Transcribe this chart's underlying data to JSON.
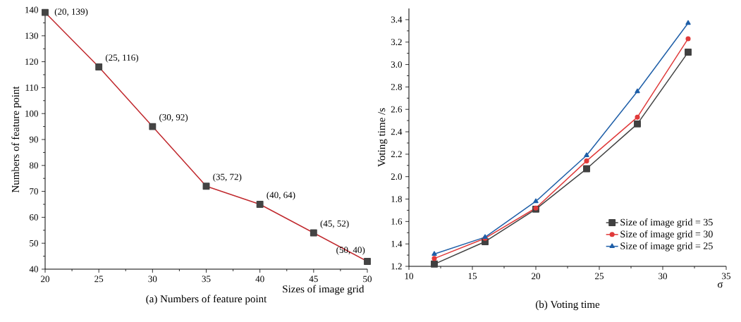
{
  "chart_data": [
    {
      "type": "line",
      "title": "(a) Numbers of feature point",
      "xlabel": "Sizes of image grid",
      "ylabel": "Numbers of feature point",
      "x": [
        20,
        25,
        30,
        35,
        40,
        45,
        50
      ],
      "series": [
        {
          "color": "#c0282d",
          "values": [
            139,
            118,
            95,
            72,
            65,
            54,
            43
          ]
        }
      ],
      "xlim": [
        20,
        50
      ],
      "xticks": [
        20,
        25,
        30,
        35,
        40,
        45,
        50
      ],
      "ylim": [
        40,
        140
      ],
      "yticks": [
        40,
        50,
        60,
        70,
        80,
        90,
        100,
        110,
        120,
        130,
        140
      ],
      "marker": "square",
      "grid": false,
      "legend": false,
      "annotations": [
        {
          "text": "(20, 139)",
          "x": 20,
          "y": 139
        },
        {
          "text": "(25, 116)",
          "x": 25,
          "y": 118
        },
        {
          "text": "(30, 92)",
          "x": 30,
          "y": 95
        },
        {
          "text": "(35, 72)",
          "x": 35,
          "y": 72
        },
        {
          "text": "(40, 64)",
          "x": 40,
          "y": 65
        },
        {
          "text": "(45, 52)",
          "x": 45,
          "y": 54
        },
        {
          "text": "(50, 40)",
          "x": 50,
          "y": 43
        }
      ]
    },
    {
      "type": "line",
      "title": "(b) Voting time",
      "xlabel": "σ",
      "ylabel": "Voting time /s",
      "x": [
        12,
        16,
        20,
        24,
        28,
        32
      ],
      "series": [
        {
          "name": "Size of image grid = 35",
          "color": "#404040",
          "marker": "square",
          "values": [
            1.22,
            1.42,
            1.71,
            2.07,
            2.47,
            3.11
          ]
        },
        {
          "name": "Size of image grid = 30",
          "color": "#e03a3a",
          "marker": "circle",
          "values": [
            1.27,
            1.45,
            1.72,
            2.14,
            2.53,
            3.23
          ]
        },
        {
          "name": "Size of image grid = 25",
          "color": "#1f5fa8",
          "marker": "triangle",
          "values": [
            1.31,
            1.46,
            1.78,
            2.19,
            2.76,
            3.37
          ]
        }
      ],
      "xlim": [
        10,
        35
      ],
      "xticks": [
        10,
        15,
        20,
        25,
        30,
        35
      ],
      "ylim": [
        1.2,
        3.5
      ],
      "yticks": [
        1.2,
        1.4,
        1.6,
        1.8,
        {
          "value": 2,
          "label": "2.0"
        },
        2.2,
        2.4,
        2.6,
        2.8,
        {
          "value": 3,
          "label": "3.0"
        },
        3.2,
        3.4
      ],
      "grid": false,
      "legend": "bottom right"
    }
  ]
}
